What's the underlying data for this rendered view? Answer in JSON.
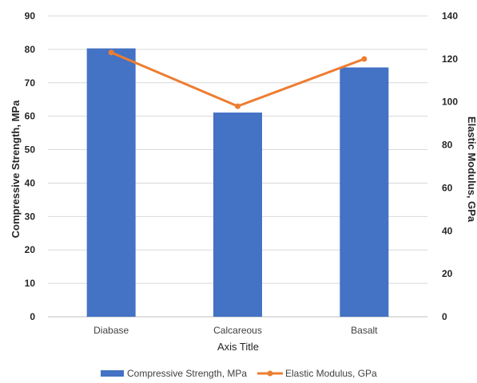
{
  "chart_data": {
    "type": "bar",
    "categories": [
      "Diabase",
      "Calcareous",
      "Basalt"
    ],
    "series": [
      {
        "name": "Compressive Strength, MPa",
        "type": "bar",
        "axis": "left",
        "color": "#4472C4",
        "values": [
          80.3,
          61.1,
          74.6
        ]
      },
      {
        "name": "Elastic Modulus, GPa",
        "type": "line",
        "axis": "right",
        "color": "#ED7D31",
        "values": [
          123,
          98,
          120
        ]
      }
    ],
    "xlabel": "Axis Title",
    "ylabel": "Compressive Strength, MPa",
    "y2label": "Elastic Modulus, GPa",
    "ylim": [
      0,
      90
    ],
    "y2lim": [
      0,
      140
    ],
    "yticks": [
      "0",
      "10",
      "20",
      "30",
      "40",
      "50",
      "60",
      "70",
      "80",
      "90"
    ],
    "y2ticks": [
      "0",
      "20",
      "40",
      "60",
      "80",
      "100",
      "120",
      "140"
    ],
    "grid": true,
    "legend": "bottom"
  }
}
